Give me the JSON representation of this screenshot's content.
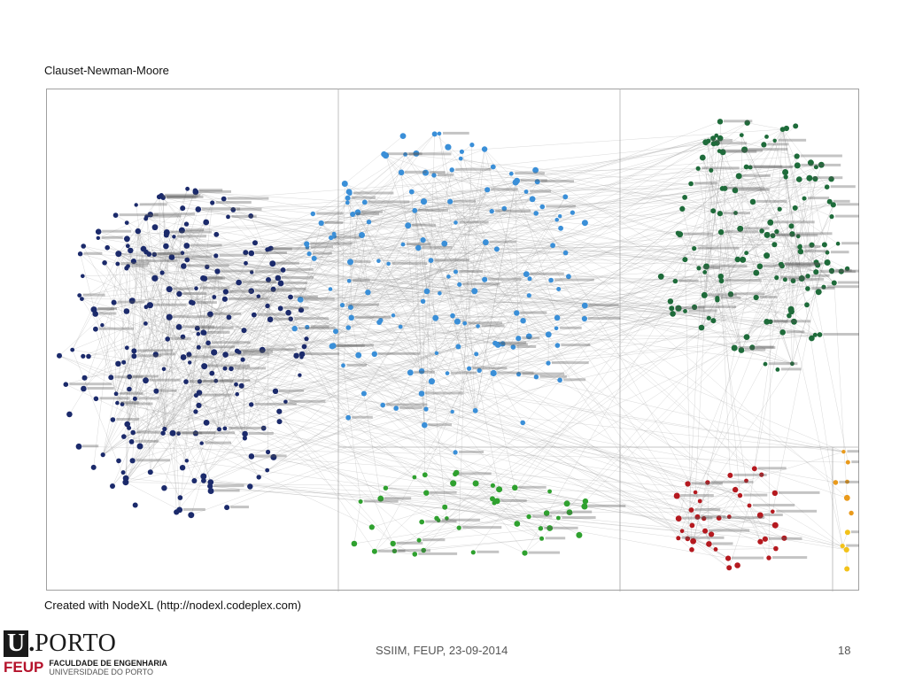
{
  "slide": {
    "figure_title": "Clauset-Newman-Moore",
    "figure_caption": "Created with NodeXL (http://nodexl.codeplex.com)",
    "footer_text": "SSIIM, FEUP, 23-09-2014",
    "slide_number": "18"
  },
  "logo": {
    "letter": "U",
    "dot": ".",
    "name": "PORTO",
    "sub_acronym": "FEUP",
    "faculty": "FACULDADE DE ENGENHARIA",
    "university": "UNIVERSIDADE DO PORTO"
  },
  "graph": {
    "clusters": [
      {
        "name": "navy",
        "color": "#1b2a6b",
        "count": 230
      },
      {
        "name": "light-blue",
        "color": "#3a8fd8",
        "count": 150
      },
      {
        "name": "dark-green",
        "color": "#1e6b3a",
        "count": 140
      },
      {
        "name": "green",
        "color": "#2fa12f",
        "count": 45
      },
      {
        "name": "red",
        "color": "#b5191f",
        "count": 40
      },
      {
        "name": "orange",
        "color": "#e99a1c",
        "count": 6
      },
      {
        "name": "yellow",
        "color": "#f2c21a",
        "count": 4
      }
    ],
    "edge_color": "#9a9a9a",
    "border_color": "#a0a0a0"
  }
}
